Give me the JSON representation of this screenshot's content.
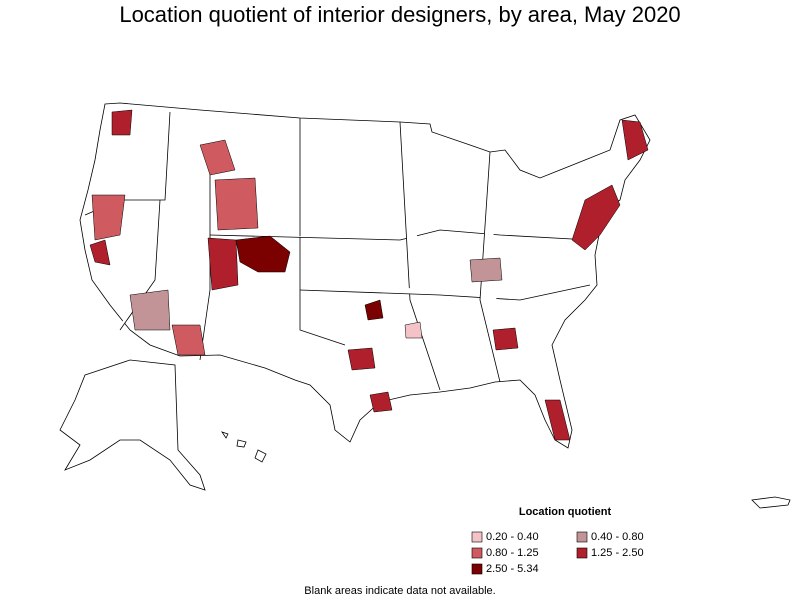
{
  "title": "Location quotient of interior designers, by area, May 2020",
  "legend": {
    "title": "Location quotient",
    "items": [
      {
        "label": "0.20 - 0.40",
        "color": "#f4c3c8"
      },
      {
        "label": "0.40 - 0.80",
        "color": "#c39497"
      },
      {
        "label": "0.80 - 1.25",
        "color": "#cf5a5f"
      },
      {
        "label": "1.25 - 2.50",
        "color": "#b01f2c"
      },
      {
        "label": "2.50 - 5.34",
        "color": "#7b0000"
      }
    ]
  },
  "footnote": "Blank areas indicate data not available."
}
